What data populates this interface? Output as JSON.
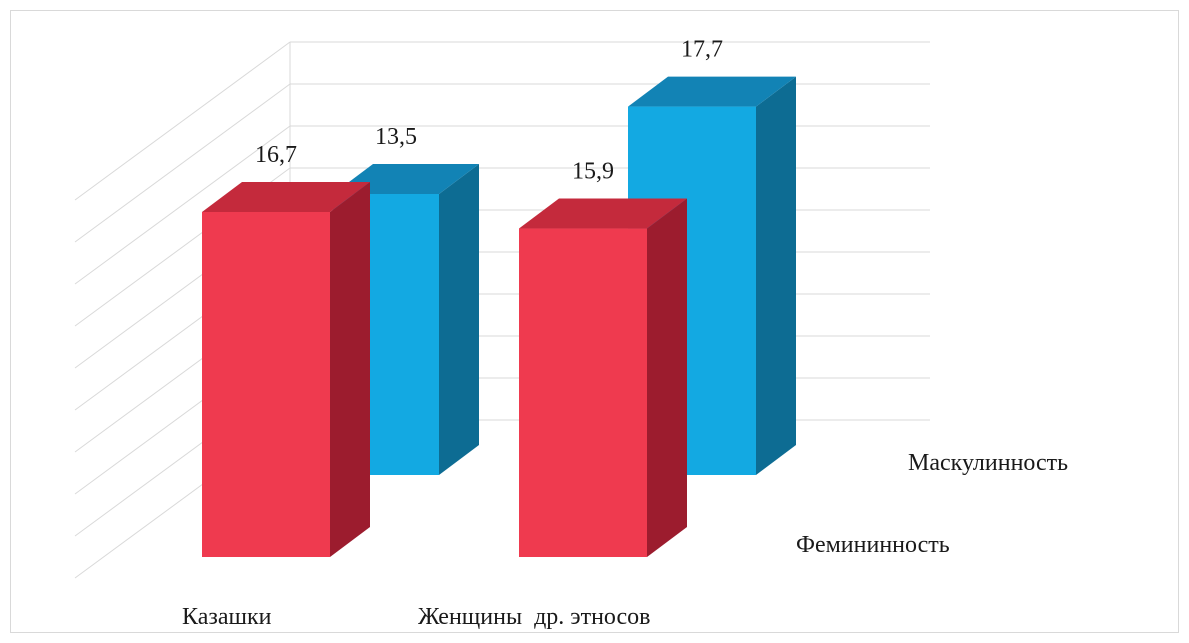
{
  "chart_data": {
    "type": "bar",
    "subtype": "3d-column",
    "categories": [
      "Казашки",
      "Женщины  др. этносов"
    ],
    "series": [
      {
        "name": "Фемининность",
        "values": [
          16.7,
          15.9
        ],
        "value_labels": [
          "16,7",
          "15,9"
        ],
        "color_front": "#ef3a4f",
        "color_top": "#c42a3c",
        "color_side": "#9c1c2e"
      },
      {
        "name": "Маскулинность",
        "values": [
          13.5,
          17.7
        ],
        "value_labels": [
          "13,5",
          "17,7"
        ],
        "color_front": "#13a9e2",
        "color_top": "#1283b5",
        "color_side": "#0d6c93"
      }
    ],
    "ylim": [
      0,
      20
    ],
    "grid": true,
    "gridline_color": "#d9d9d9",
    "border_color": "#d9d9d9"
  }
}
